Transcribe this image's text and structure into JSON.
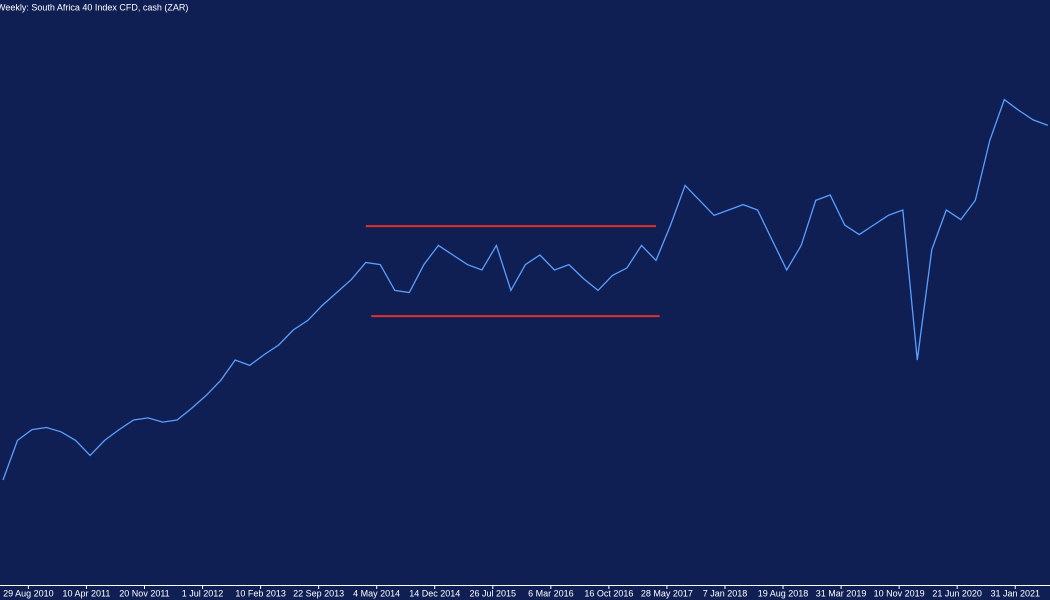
{
  "chart_data": {
    "type": "line",
    "title": "Weekly:  South Africa 40 Index CFD, cash (ZAR)",
    "x": [
      0,
      8,
      16,
      24,
      32,
      40,
      48,
      56,
      64,
      72,
      80,
      88,
      96,
      104,
      112,
      120,
      128,
      136,
      144,
      152,
      160,
      168,
      176,
      184,
      192,
      200,
      208,
      216,
      224,
      232,
      240,
      248,
      256,
      264,
      272,
      280,
      288,
      296,
      304,
      312,
      320,
      328,
      336,
      344,
      352,
      360,
      368,
      376,
      384,
      392,
      400,
      408,
      416,
      424,
      432,
      440,
      448,
      456,
      464,
      472,
      480,
      488,
      496,
      504,
      512,
      520,
      528,
      536,
      544,
      552,
      560,
      568,
      576
    ],
    "series": [
      {
        "name": "South Africa 40 Index CFD, cash (ZAR)",
        "color": "#5a9fff",
        "values": [
          25000,
          28700,
          29700,
          29900,
          29500,
          28700,
          27300,
          28700,
          29700,
          30600,
          30800,
          30400,
          30600,
          31700,
          32900,
          34300,
          36200,
          35700,
          36700,
          37600,
          39000,
          39900,
          41300,
          42500,
          43700,
          45300,
          45100,
          42700,
          42500,
          45100,
          46900,
          46000,
          45100,
          44600,
          46900,
          42700,
          45100,
          46000,
          44600,
          45100,
          43800,
          42700,
          44100,
          44800,
          46900,
          45500,
          48800,
          52500,
          51100,
          49700,
          50200,
          50700,
          50200,
          47400,
          44600,
          46900,
          51100,
          51600,
          48800,
          47900,
          48800,
          49700,
          50200,
          36200,
          46500,
          50200,
          49300,
          51100,
          56700,
          60500,
          59500,
          58600,
          58100
        ]
      }
    ],
    "hlines": [
      {
        "value": 48700,
        "x": [
          200,
          360
        ],
        "color": "#e0302a"
      },
      {
        "value": 40300,
        "x": [
          203,
          362
        ],
        "color": "#e0302a"
      }
    ],
    "xlim": [
      0,
      578
    ],
    "ylim": [
      15200,
      69800
    ],
    "xticks": [
      {
        "value": 14,
        "label": "29 Aug 2010"
      },
      {
        "value": 46,
        "label": "10 Apr 2011"
      },
      {
        "value": 78,
        "label": "20 Nov 2011"
      },
      {
        "value": 110,
        "label": "1 Jul 2012"
      },
      {
        "value": 142,
        "label": "10 Feb 2013"
      },
      {
        "value": 174,
        "label": "22 Sep 2013"
      },
      {
        "value": 206,
        "label": "4 May 2014"
      },
      {
        "value": 238,
        "label": "14 Dec 2014"
      },
      {
        "value": 270,
        "label": "26 Jul 2015"
      },
      {
        "value": 302,
        "label": "6 Mar 2016"
      },
      {
        "value": 334,
        "label": "16 Oct 2016"
      },
      {
        "value": 366,
        "label": "28 May 2017"
      },
      {
        "value": 398,
        "label": "7 Jan 2018"
      },
      {
        "value": 430,
        "label": "19 Aug 2018"
      },
      {
        "value": 462,
        "label": "31 Mar 2019"
      },
      {
        "value": 494,
        "label": "10 Nov 2019"
      },
      {
        "value": 526,
        "label": "21 Jun 2020"
      },
      {
        "value": 558,
        "label": "31 Jan 2021"
      }
    ]
  }
}
